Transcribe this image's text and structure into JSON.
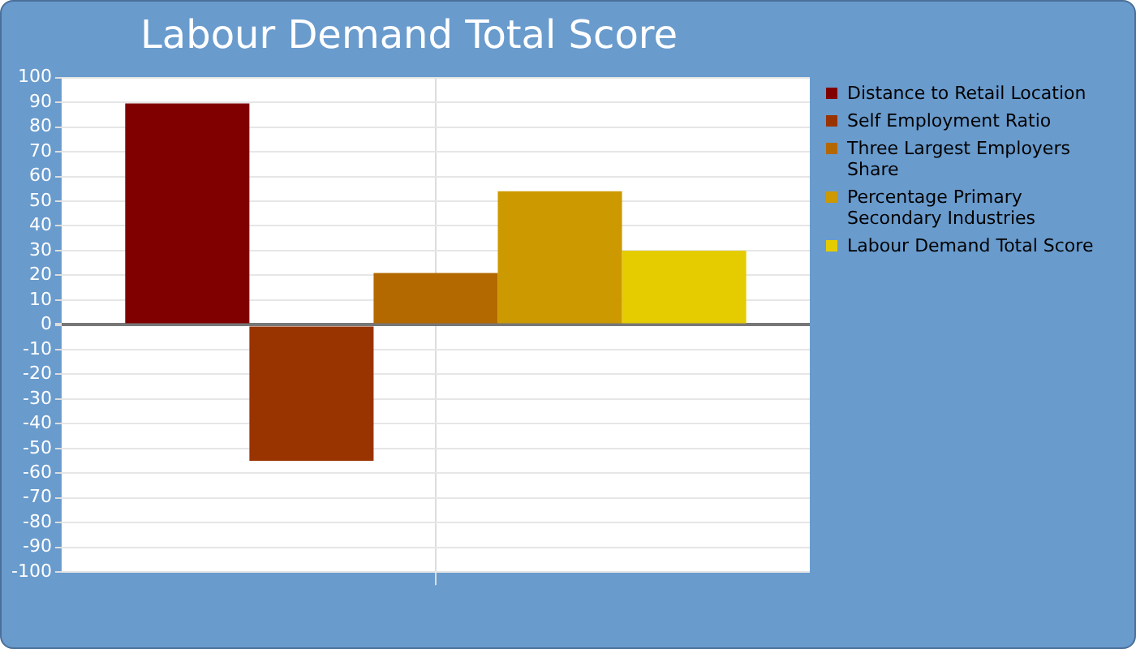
{
  "chart_data": {
    "type": "bar",
    "title": "Labour Demand Total Score",
    "categories": [
      null
    ],
    "series": [
      {
        "name": "Distance to Retail Location",
        "color": "#800000",
        "values": [
          89.5
        ]
      },
      {
        "name": "Self Employment Ratio",
        "color": "#993300",
        "values": [
          -55
        ]
      },
      {
        "name": "Three Largest Employers Share",
        "color": "#b36800",
        "values": [
          21
        ]
      },
      {
        "name": "Percentage Primary Secondary Industries",
        "color": "#cc9900",
        "values": [
          54
        ]
      },
      {
        "name": "Labour Demand Total Score",
        "color": "#e5cc00",
        "values": [
          30
        ]
      }
    ],
    "ylim": [
      -100,
      100
    ],
    "yticks": [
      -100,
      -90,
      -80,
      -70,
      -60,
      -50,
      -40,
      -30,
      -20,
      -10,
      0,
      10,
      20,
      30,
      40,
      50,
      60,
      70,
      80,
      90,
      100
    ],
    "grid": true,
    "legend": "right"
  }
}
